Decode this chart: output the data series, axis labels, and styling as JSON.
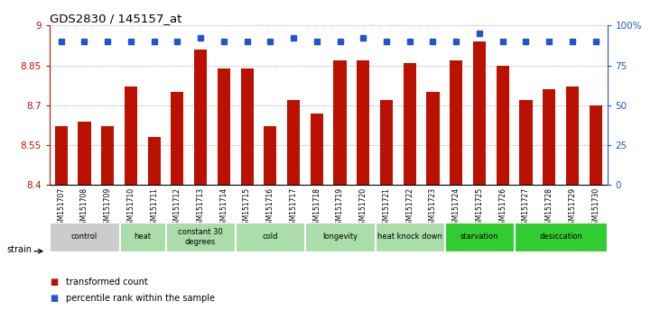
{
  "title": "GDS2830 / 145157_at",
  "samples": [
    "GSM151707",
    "GSM151708",
    "GSM151709",
    "GSM151710",
    "GSM151711",
    "GSM151712",
    "GSM151713",
    "GSM151714",
    "GSM151715",
    "GSM151716",
    "GSM151717",
    "GSM151718",
    "GSM151719",
    "GSM151720",
    "GSM151721",
    "GSM151722",
    "GSM151723",
    "GSM151724",
    "GSM151725",
    "GSM151726",
    "GSM151727",
    "GSM151728",
    "GSM151729",
    "GSM151730"
  ],
  "bar_values": [
    8.62,
    8.64,
    8.62,
    8.77,
    8.58,
    8.75,
    8.91,
    8.84,
    8.84,
    8.62,
    8.72,
    8.67,
    8.87,
    8.87,
    8.72,
    8.86,
    8.75,
    8.87,
    8.94,
    8.85,
    8.72,
    8.76,
    8.77,
    8.7
  ],
  "percentile_values": [
    90,
    90,
    90,
    90,
    90,
    90,
    92,
    90,
    90,
    90,
    92,
    90,
    90,
    92,
    90,
    90,
    90,
    90,
    95,
    90,
    90,
    90,
    90,
    90
  ],
  "ymin": 8.4,
  "ymax": 9.0,
  "yticks": [
    8.4,
    8.55,
    8.7,
    8.85,
    9.0
  ],
  "ytick_labels": [
    "8.4",
    "8.55",
    "8.7",
    "8.85",
    "9"
  ],
  "right_yticks": [
    0,
    25,
    50,
    75,
    100
  ],
  "right_ytick_labels": [
    "0",
    "25",
    "50",
    "75",
    "100%"
  ],
  "bar_color": "#bb1100",
  "percentile_color": "#2255cc",
  "groups": [
    {
      "label": "control",
      "start": 0,
      "end": 2,
      "color": "#cccccc"
    },
    {
      "label": "heat",
      "start": 3,
      "end": 4,
      "color": "#aaddaa"
    },
    {
      "label": "constant 30\ndegrees",
      "start": 5,
      "end": 7,
      "color": "#aaddaa"
    },
    {
      "label": "cold",
      "start": 8,
      "end": 10,
      "color": "#aaddaa"
    },
    {
      "label": "longevity",
      "start": 11,
      "end": 13,
      "color": "#aaddaa"
    },
    {
      "label": "heat knock down",
      "start": 14,
      "end": 16,
      "color": "#aaddaa"
    },
    {
      "label": "starvation",
      "start": 17,
      "end": 19,
      "color": "#33cc33"
    },
    {
      "label": "desiccation",
      "start": 20,
      "end": 23,
      "color": "#33cc33"
    }
  ],
  "legend_bar_label": "transformed count",
  "legend_dot_label": "percentile rank within the sample",
  "strain_label": "strain",
  "grid_color": "#888888",
  "background_color": "#ffffff"
}
